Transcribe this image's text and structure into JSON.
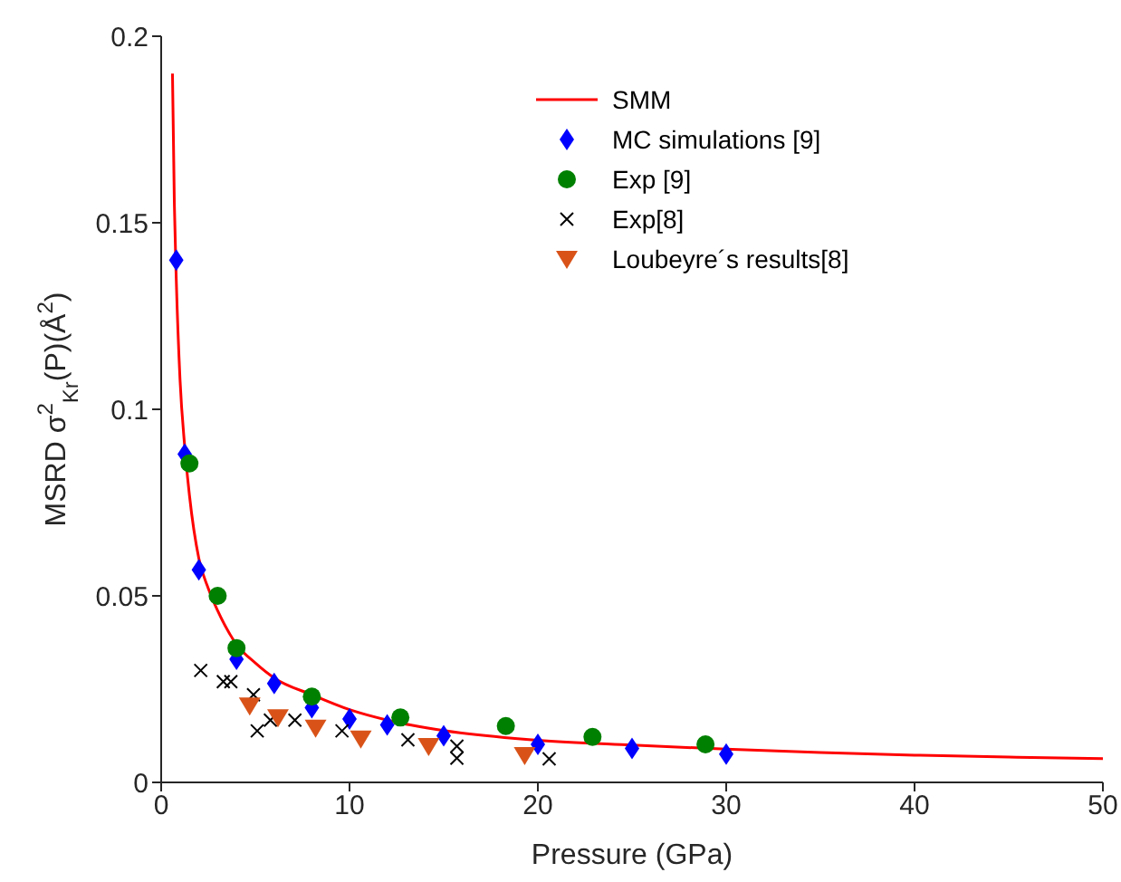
{
  "chart_data": {
    "type": "scatter",
    "xlabel": "Pressure (GPa)",
    "ylabel": "MSRD σ$^{2}$$_{Kr}$(P)(Å$^{2}$)",
    "xlim": [
      0,
      50
    ],
    "xticks": [
      0,
      10,
      20,
      30,
      40,
      50
    ],
    "ylim": [
      0,
      0.2
    ],
    "yticks": [
      0,
      0.05,
      0.1,
      0.15,
      0.2
    ],
    "grid": false,
    "legend": "top right",
    "series": [
      {
        "name": "SMM",
        "type": "line",
        "color": "#ff0000",
        "marker": "none",
        "line_style": "solid",
        "x": [
          0.6,
          0.7,
          0.8,
          1,
          1.25,
          1.5,
          2,
          2.5,
          3,
          4,
          5,
          6,
          8,
          10,
          12,
          15,
          20,
          25,
          30,
          35,
          40,
          45,
          50
        ],
        "values": [
          0.19,
          0.155,
          0.135,
          0.108,
          0.09,
          0.077,
          0.06,
          0.052,
          0.046,
          0.037,
          0.032,
          0.028,
          0.0235,
          0.0195,
          0.0167,
          0.0139,
          0.0113,
          0.01,
          0.0089,
          0.008,
          0.0073,
          0.0068,
          0.0064
        ]
      },
      {
        "name": "MC simulations [9]",
        "type": "scatter",
        "color": "#0000ff",
        "marker": "diamond",
        "x": [
          0.8,
          1.25,
          2,
          4,
          6,
          8,
          10,
          12,
          15,
          20,
          25,
          30
        ],
        "values": [
          0.14,
          0.088,
          0.057,
          0.033,
          0.0265,
          0.02,
          0.017,
          0.0154,
          0.0125,
          0.0102,
          0.0091,
          0.0076
        ]
      },
      {
        "name": "Exp [9]",
        "type": "scatter",
        "color": "#008000",
        "marker": "circle",
        "x": [
          1.5,
          3,
          4,
          8,
          12.7,
          18.3,
          22.9,
          28.9
        ],
        "values": [
          0.0855,
          0.05,
          0.036,
          0.023,
          0.0174,
          0.0151,
          0.0122,
          0.0102
        ]
      },
      {
        "name": "Exp[8]",
        "type": "scatter",
        "color": "#000000",
        "marker": "cross",
        "x": [
          2.1,
          3.3,
          3.7,
          4.9,
          5.1,
          5.8,
          7.1,
          9.6,
          13.1,
          15.7,
          15.7,
          20.6
        ],
        "values": [
          0.03,
          0.027,
          0.027,
          0.0235,
          0.0138,
          0.0167,
          0.0167,
          0.0138,
          0.0114,
          0.0097,
          0.0065,
          0.0063
        ]
      },
      {
        "name": "Loubeyre´s results[8]",
        "type": "scatter",
        "color": "#d95319",
        "marker": "triangle",
        "x": [
          4.7,
          6.2,
          8.2,
          10.6,
          14.2,
          19.3
        ],
        "values": [
          0.0206,
          0.0174,
          0.0146,
          0.0117,
          0.0097,
          0.0073
        ]
      }
    ]
  }
}
